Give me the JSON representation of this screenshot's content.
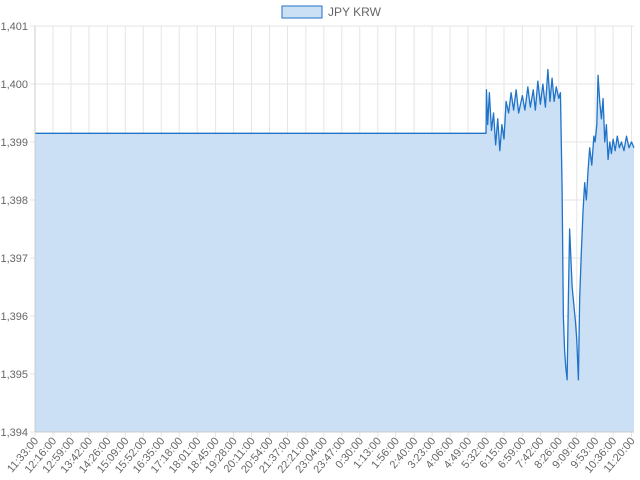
{
  "chart_data": {
    "type": "area",
    "title": "",
    "xlabel": "",
    "ylabel": "",
    "legend_position": "top-center",
    "grid": true,
    "ylim": [
      1394,
      1401
    ],
    "yticks": [
      "1,394",
      "1,395",
      "1,396",
      "1,397",
      "1,398",
      "1,399",
      "1,400",
      "1,401"
    ],
    "xticks": [
      "11:33:00",
      "12:16:00",
      "12:59:00",
      "13:42:00",
      "14:26:00",
      "15:09:00",
      "15:52:00",
      "16:35:00",
      "17:18:00",
      "18:01:00",
      "18:45:00",
      "19:28:00",
      "20:11:00",
      "20:54:00",
      "21:37:00",
      "22:21:00",
      "23:04:00",
      "23:47:00",
      "0:30:00",
      "1:13:00",
      "1:56:00",
      "2:40:00",
      "3:23:00",
      "4:06:00",
      "4:49:00",
      "5:32:00",
      "6:15:00",
      "6:59:00",
      "7:42:00",
      "8:26:00",
      "9:09:00",
      "9:53:00",
      "10:36:00",
      "11:20:00"
    ],
    "series": [
      {
        "name": "JPY KRW",
        "line_color": "#1f73c9",
        "fill_color": "#cce0f5",
        "points": [
          [
            "11:33:00",
            1399.15
          ],
          [
            "5:32:00",
            1399.15
          ],
          [
            "5:33:00",
            1399.9
          ],
          [
            "5:36:00",
            1399.3
          ],
          [
            "5:40:00",
            1399.85
          ],
          [
            "5:45:00",
            1399.2
          ],
          [
            "5:50:00",
            1399.5
          ],
          [
            "5:55:00",
            1398.95
          ],
          [
            "6:00:00",
            1399.4
          ],
          [
            "6:05:00",
            1398.85
          ],
          [
            "6:10:00",
            1399.3
          ],
          [
            "6:15:00",
            1399.05
          ],
          [
            "6:20:00",
            1399.7
          ],
          [
            "6:26:00",
            1399.5
          ],
          [
            "6:32:00",
            1399.85
          ],
          [
            "6:38:00",
            1399.55
          ],
          [
            "6:44:00",
            1399.9
          ],
          [
            "6:50:00",
            1399.5
          ],
          [
            "6:59:00",
            1399.8
          ],
          [
            "7:05:00",
            1399.55
          ],
          [
            "7:12:00",
            1399.95
          ],
          [
            "7:18:00",
            1399.6
          ],
          [
            "7:25:00",
            1399.9
          ],
          [
            "7:30:00",
            1399.55
          ],
          [
            "7:36:00",
            1400.05
          ],
          [
            "7:42:00",
            1399.65
          ],
          [
            "7:48:00",
            1400.0
          ],
          [
            "7:54:00",
            1399.6
          ],
          [
            "8:00:00",
            1400.25
          ],
          [
            "8:05:00",
            1399.7
          ],
          [
            "8:10:00",
            1400.1
          ],
          [
            "8:15:00",
            1399.7
          ],
          [
            "8:20:00",
            1399.95
          ],
          [
            "8:26:00",
            1399.75
          ],
          [
            "8:30:00",
            1399.85
          ],
          [
            "8:34:00",
            1398.2
          ],
          [
            "8:37:00",
            1396.0
          ],
          [
            "8:40:00",
            1395.4
          ],
          [
            "8:43:00",
            1395.1
          ],
          [
            "8:46:00",
            1394.9
          ],
          [
            "8:49:00",
            1396.3
          ],
          [
            "8:52:00",
            1397.5
          ],
          [
            "8:55:00",
            1397.0
          ],
          [
            "8:58:00",
            1396.5
          ],
          [
            "9:02:00",
            1396.2
          ],
          [
            "9:06:00",
            1395.9
          ],
          [
            "9:09:00",
            1395.6
          ],
          [
            "9:13:00",
            1394.9
          ],
          [
            "9:16:00",
            1396.3
          ],
          [
            "9:20:00",
            1397.1
          ],
          [
            "9:24:00",
            1397.8
          ],
          [
            "9:28:00",
            1398.3
          ],
          [
            "9:32:00",
            1398.0
          ],
          [
            "9:36:00",
            1398.5
          ],
          [
            "9:40:00",
            1398.9
          ],
          [
            "9:45:00",
            1398.6
          ],
          [
            "9:50:00",
            1399.1
          ],
          [
            "9:53:00",
            1399.0
          ],
          [
            "9:57:00",
            1399.3
          ],
          [
            "10:00:00",
            1400.15
          ],
          [
            "10:04:00",
            1399.7
          ],
          [
            "10:08:00",
            1399.4
          ],
          [
            "10:12:00",
            1399.75
          ],
          [
            "10:16:00",
            1399.0
          ],
          [
            "10:20:00",
            1399.3
          ],
          [
            "10:24:00",
            1398.7
          ],
          [
            "10:28:00",
            1399.0
          ],
          [
            "10:32:00",
            1398.8
          ],
          [
            "10:36:00",
            1399.05
          ],
          [
            "10:41:00",
            1398.85
          ],
          [
            "10:46:00",
            1399.1
          ],
          [
            "10:51:00",
            1398.9
          ],
          [
            "10:56:00",
            1399.0
          ],
          [
            "11:02:00",
            1398.85
          ],
          [
            "11:08:00",
            1399.1
          ],
          [
            "11:14:00",
            1398.9
          ],
          [
            "11:20:00",
            1399.0
          ],
          [
            "11:26:00",
            1398.9
          ]
        ]
      }
    ]
  }
}
